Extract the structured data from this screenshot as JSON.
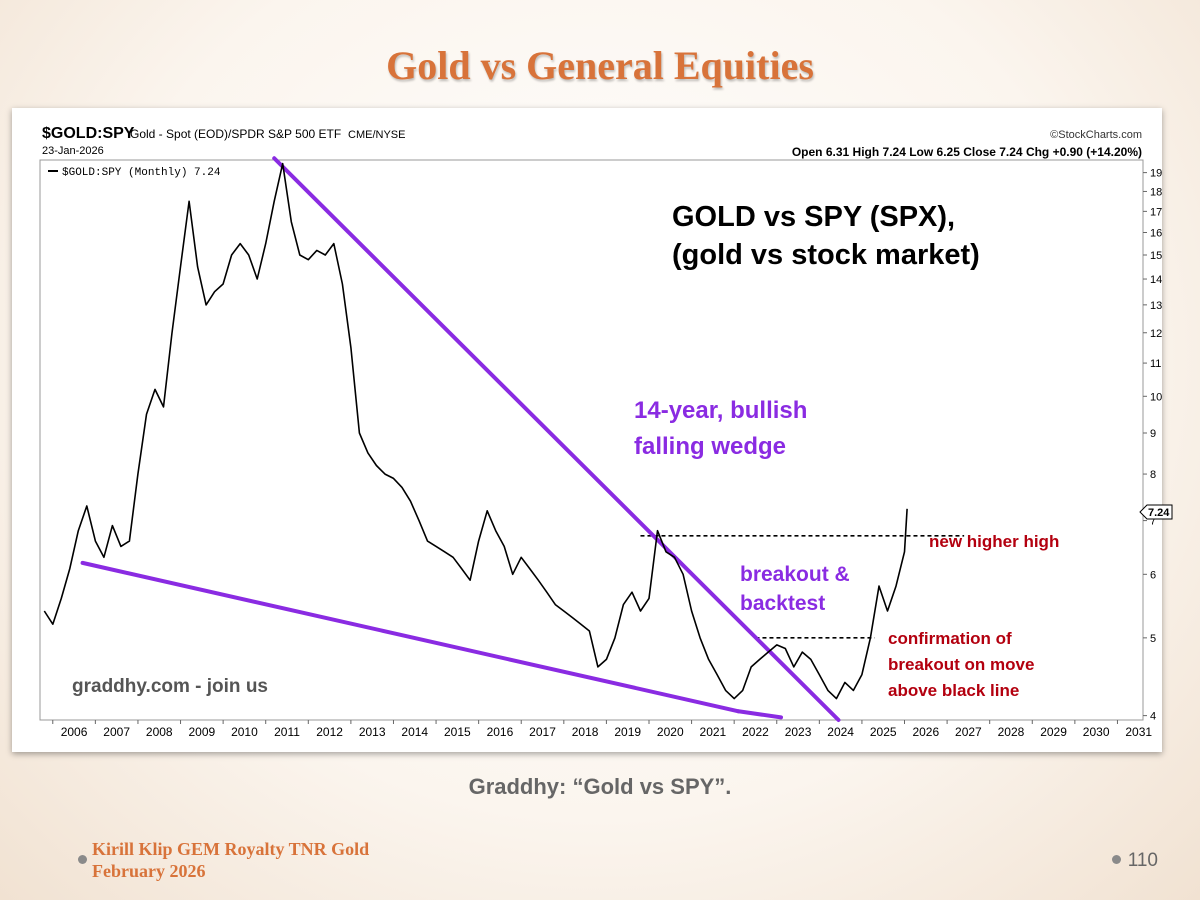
{
  "slide": {
    "title": "Gold vs General Equities",
    "caption": "Graddhy: “Gold vs SPY”.",
    "footer_line1": "Kirill Klip GEM Royalty TNR Gold",
    "footer_line2": "February 2026",
    "page_number": "110"
  },
  "chart_header": {
    "symbol": "$GOLD:SPY",
    "description": "Gold - Spot (EOD)/SPDR S&P 500 ETF",
    "exchange": "CME/NYSE",
    "date": "23-Jan-2026",
    "source": "©StockCharts.com",
    "ohlc": "Open 6.31  High 7.24  Low 6.25  Close 7.24  Chg +0.90 (+14.20%)",
    "legend": "$GOLD:SPY (Monthly) 7.24",
    "last_value_tag": "7.24"
  },
  "annotations": {
    "title_line1": "GOLD vs SPY (SPX),",
    "title_line2": "(gold vs stock market)",
    "wedge_line1": "14-year, bullish",
    "wedge_line2": "falling wedge",
    "breakout_line1": "breakout &",
    "breakout_line2": "backtest",
    "higher_high": "new higher high",
    "confirm_line1": "confirmation of",
    "confirm_line2": "breakout on move",
    "confirm_line3": "above black line",
    "watermark": "graddhy.com - join us"
  },
  "colors": {
    "accent_orange": "#d8733a",
    "wedge_purple": "#8a2be2",
    "annotation_red": "#b3000f",
    "price_line": "#000000"
  },
  "chart_data": {
    "type": "line",
    "scale": "log",
    "x_ticks": [
      2006,
      2007,
      2008,
      2009,
      2010,
      2011,
      2012,
      2013,
      2014,
      2015,
      2016,
      2017,
      2018,
      2019,
      2020,
      2021,
      2022,
      2023,
      2024,
      2025,
      2026,
      2027,
      2028,
      2029,
      2030,
      2031
    ],
    "y_ticks": [
      4,
      5,
      6,
      7,
      8,
      9,
      10,
      11,
      12,
      13,
      14,
      15,
      16,
      17,
      18,
      19
    ],
    "xlim": [
      2005.7,
      2031.6
    ],
    "ylim": [
      3.95,
      19.7
    ],
    "series": [
      {
        "name": "$GOLD:SPY (Monthly) 7.24",
        "x": [
          2005.8,
          2006.0,
          2006.2,
          2006.4,
          2006.6,
          2006.8,
          2007.0,
          2007.2,
          2007.4,
          2007.6,
          2007.8,
          2008.0,
          2008.2,
          2008.4,
          2008.6,
          2008.8,
          2009.0,
          2009.2,
          2009.4,
          2009.6,
          2009.8,
          2010.0,
          2010.2,
          2010.4,
          2010.6,
          2010.8,
          2011.0,
          2011.2,
          2011.4,
          2011.6,
          2011.8,
          2012.0,
          2012.2,
          2012.4,
          2012.6,
          2012.8,
          2013.0,
          2013.2,
          2013.4,
          2013.6,
          2013.8,
          2014.0,
          2014.2,
          2014.4,
          2014.6,
          2014.8,
          2015.0,
          2015.2,
          2015.4,
          2015.6,
          2015.8,
          2016.0,
          2016.2,
          2016.4,
          2016.6,
          2016.8,
          2017.0,
          2017.2,
          2017.4,
          2017.6,
          2017.8,
          2018.0,
          2018.2,
          2018.4,
          2018.6,
          2018.8,
          2019.0,
          2019.2,
          2019.4,
          2019.6,
          2019.8,
          2020.0,
          2020.2,
          2020.4,
          2020.6,
          2020.8,
          2021.0,
          2021.2,
          2021.4,
          2021.6,
          2021.8,
          2022.0,
          2022.2,
          2022.4,
          2022.6,
          2022.8,
          2023.0,
          2023.2,
          2023.4,
          2023.6,
          2023.8,
          2024.0,
          2024.2,
          2024.4,
          2024.6,
          2024.8,
          2025.0,
          2025.2,
          2025.4,
          2025.6,
          2025.8,
          2026.0,
          2026.06
        ],
        "values": [
          5.4,
          5.2,
          5.6,
          6.1,
          6.8,
          7.3,
          6.6,
          6.3,
          6.9,
          6.5,
          6.6,
          8.0,
          9.5,
          10.2,
          9.7,
          12.0,
          14.5,
          17.5,
          14.5,
          13.0,
          13.5,
          13.8,
          15.0,
          15.5,
          15.0,
          14.0,
          15.5,
          17.5,
          19.5,
          16.5,
          15.0,
          14.8,
          15.2,
          15.0,
          15.5,
          13.8,
          11.5,
          9.0,
          8.5,
          8.2,
          8.0,
          7.9,
          7.7,
          7.4,
          7.0,
          6.6,
          6.5,
          6.4,
          6.3,
          6.1,
          5.9,
          6.6,
          7.2,
          6.8,
          6.5,
          6.0,
          6.3,
          6.1,
          5.9,
          5.7,
          5.5,
          5.4,
          5.3,
          5.2,
          5.1,
          4.6,
          4.7,
          5.0,
          5.5,
          5.7,
          5.4,
          5.6,
          6.8,
          6.4,
          6.3,
          6.0,
          5.4,
          5.0,
          4.7,
          4.5,
          4.3,
          4.2,
          4.3,
          4.6,
          4.7,
          4.8,
          4.9,
          4.85,
          4.6,
          4.8,
          4.7,
          4.5,
          4.3,
          4.2,
          4.4,
          4.3,
          4.5,
          5.0,
          5.8,
          5.4,
          5.8,
          6.4,
          7.24
        ]
      }
    ],
    "trendlines": [
      {
        "name": "wedge-upper",
        "from": [
          2011.2,
          19.8
        ],
        "to": [
          2024.45,
          3.95
        ]
      },
      {
        "name": "wedge-lower",
        "from": [
          2006.7,
          6.2
        ],
        "to": [
          2022.1,
          4.05
        ]
      },
      {
        "name": "wedge-lower-ext",
        "from": [
          2022.1,
          4.05
        ],
        "to": [
          2023.1,
          3.98
        ]
      }
    ],
    "levels": [
      {
        "name": "higher-high-line",
        "y": 6.7,
        "x_from": 2019.8,
        "x_to": 2027.4
      },
      {
        "name": "confirmation-line",
        "y": 5.0,
        "x_from": 2022.5,
        "x_to": 2025.3
      }
    ]
  }
}
